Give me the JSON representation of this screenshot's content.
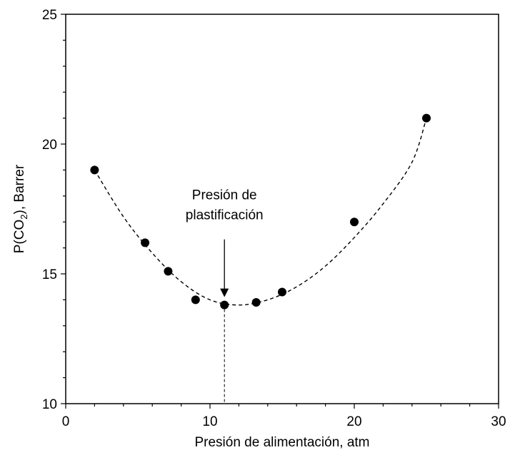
{
  "chart_data": {
    "type": "scatter",
    "xlabel": "Presión de alimentación, atm",
    "ylabel_prefix": "P(CO",
    "ylabel_sub": "2",
    "ylabel_suffix": "), Barrer",
    "xlim": [
      0,
      30
    ],
    "ylim": [
      10,
      25
    ],
    "x_major_ticks": [
      0,
      10,
      20,
      30
    ],
    "y_major_ticks": [
      10,
      15,
      20,
      25
    ],
    "x_tick_labels": [
      "0",
      "10",
      "20",
      "30"
    ],
    "y_tick_labels": [
      "10",
      "15",
      "20",
      "25"
    ],
    "grid": false,
    "series": [
      {
        "x": [
          2,
          5.5,
          7.1,
          9,
          11,
          13.2,
          15,
          20,
          25
        ],
        "y": [
          19.0,
          16.2,
          15.1,
          14.0,
          13.8,
          13.9,
          14.3,
          17.0,
          21.0
        ],
        "marker": "circle",
        "color": "#000000"
      }
    ],
    "fit_curve": {
      "style": "dashed",
      "x_range": [
        2,
        25
      ],
      "points": [
        [
          2,
          19.0
        ],
        [
          4,
          17.2
        ],
        [
          6,
          15.8
        ],
        [
          8,
          14.7
        ],
        [
          10,
          14.0
        ],
        [
          12,
          13.8
        ],
        [
          14,
          14.0
        ],
        [
          16,
          14.5
        ],
        [
          18,
          15.3
        ],
        [
          20,
          16.4
        ],
        [
          22,
          17.7
        ],
        [
          24,
          19.3
        ],
        [
          25,
          21.0
        ]
      ]
    },
    "annotation": {
      "text_line1": "Presión de",
      "text_line2": "plastificación",
      "arrow_target": [
        11,
        13.8
      ],
      "vertical_dashed_x": 11
    }
  }
}
